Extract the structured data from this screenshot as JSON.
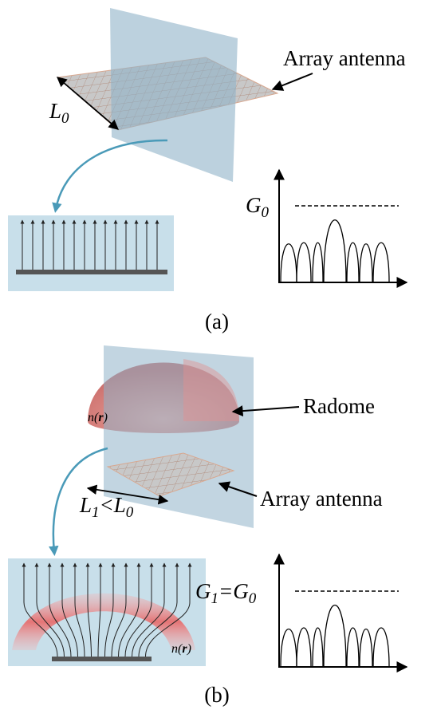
{
  "panel_a": {
    "antenna_label": "Array antenna",
    "length_label": {
      "main": "L",
      "sub": "0"
    },
    "gain_label": {
      "main": "G",
      "sub": "0"
    },
    "caption": "(a)"
  },
  "panel_b": {
    "radome_label": "Radome",
    "index_label": {
      "before": "n(",
      "bold": "r",
      "after": ")"
    },
    "antenna_label": "Array antenna",
    "length_label": {
      "main": "L",
      "sub": "1",
      "rel": "<L",
      "sub2": "0"
    },
    "gain_label": {
      "main": "G",
      "sub": "1",
      "rel": "=G",
      "sub2": "0"
    },
    "profile_label": {
      "before": "n(",
      "bold": "r",
      "after": ")"
    },
    "caption": "(b)"
  }
}
